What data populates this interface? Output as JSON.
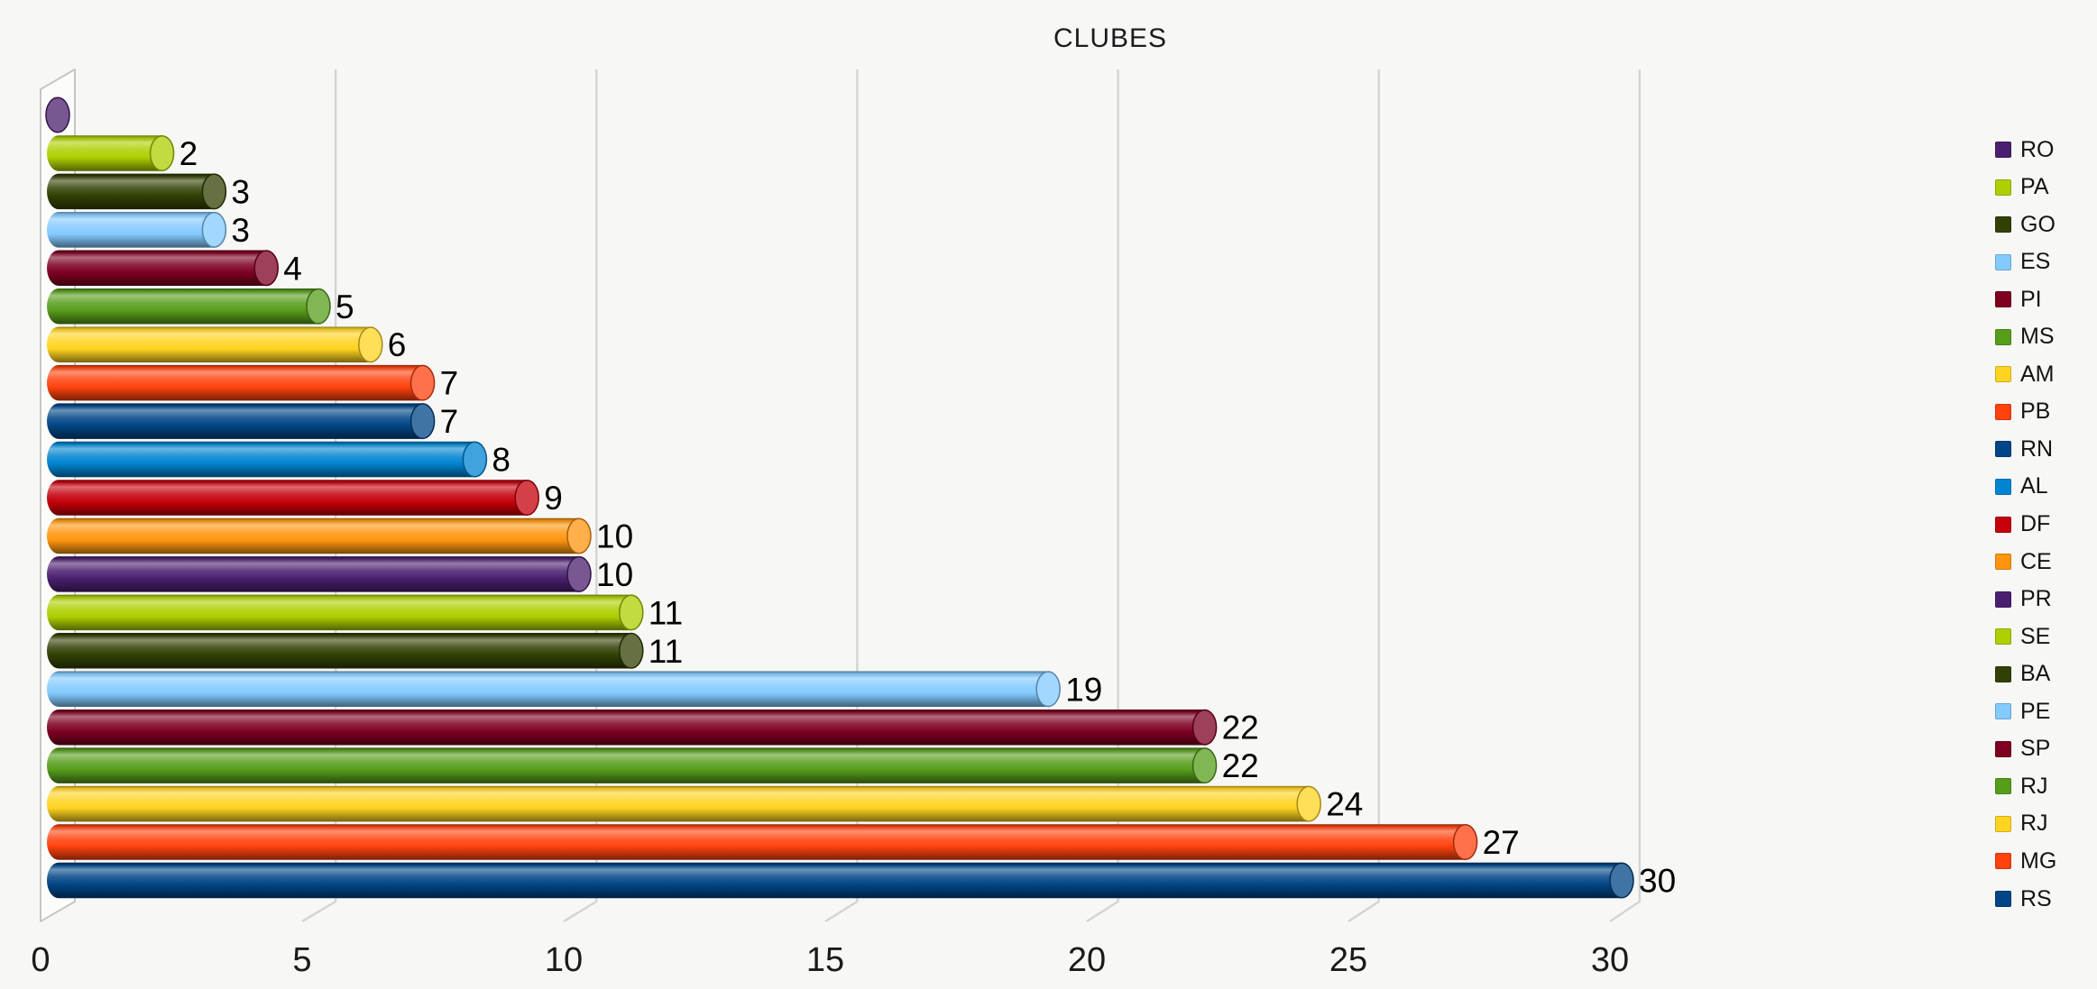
{
  "page": {
    "background": "#f7f7f5"
  },
  "chart_data": {
    "type": "bar",
    "orientation": "horizontal",
    "style": "3d-cylinder",
    "title": "CLUBES",
    "categories": [
      "RO",
      "PA",
      "GO",
      "ES",
      "PI",
      "MS",
      "AM",
      "PB",
      "RN",
      "AL",
      "DF",
      "CE",
      "PR",
      "SE",
      "BA",
      "PE",
      "SP",
      "RJ",
      "RJ",
      "MG",
      "RS"
    ],
    "values": [
      0,
      2,
      3,
      3,
      4,
      5,
      6,
      7,
      7,
      8,
      9,
      10,
      10,
      11,
      11,
      19,
      22,
      22,
      24,
      27,
      30
    ],
    "bar_colors": [
      "#4b1f6f",
      "#aecf00",
      "#314004",
      "#83caff",
      "#7e0021",
      "#579d1c",
      "#ffd320",
      "#ff420e",
      "#004586",
      "#0084d1",
      "#c5000b",
      "#ff950e",
      "#4b1f6f",
      "#aecf00",
      "#314004",
      "#83caff",
      "#7e0021",
      "#579d1c",
      "#ffd320",
      "#ff420e",
      "#004586"
    ],
    "legend": [
      "RO",
      "PA",
      "GO",
      "ES",
      "PI",
      "MS",
      "AM",
      "PB",
      "RN",
      "AL",
      "DF",
      "CE",
      "PR",
      "SE",
      "BA",
      "PE",
      "SP",
      "RJ",
      "RJ",
      "MG",
      "RS"
    ],
    "legend_position": "right",
    "x_ticks": [
      0,
      5,
      10,
      15,
      20,
      25,
      30
    ],
    "xlim": [
      0,
      30
    ],
    "xlabel": "",
    "ylabel": "",
    "grid": true,
    "value_labels_visible": true,
    "zero_values_unlabeled": true,
    "styles": {
      "gridline_color": "#d4d4d4",
      "wall_fill": "#fcfcfb",
      "wall_stroke": "#c6c6c6",
      "axis_label_color": "#1a1a1a",
      "value_label_color": "#000000",
      "title_color": "#1c1c1c"
    }
  }
}
